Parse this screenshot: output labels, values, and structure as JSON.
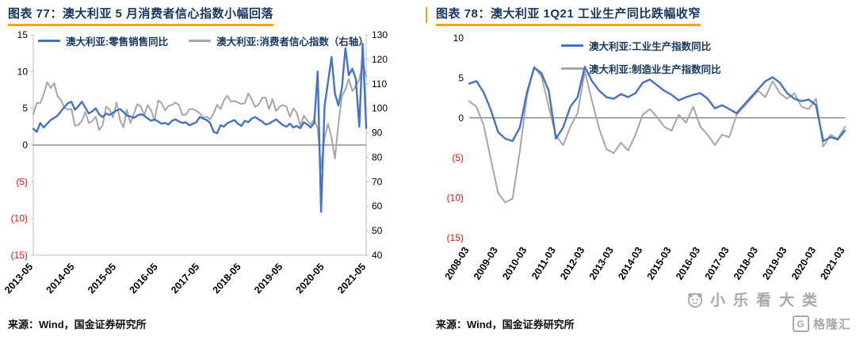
{
  "page": {
    "background": "#ffffff",
    "accent_underline": "#f7a600",
    "title_color": "#17375e",
    "negative_tick_color": "#ff0000"
  },
  "watermark": {
    "text": "小乐看大类",
    "logo_text": "格隆汇",
    "logo_letter": "G",
    "color": "#a8a8a8"
  },
  "chart_data": [
    {
      "type": "line",
      "title": "图表 77：澳大利亚 5 月消费者信心指数小幅回落",
      "source": "来源：Wind，国金证券研究所",
      "x_unit": "month",
      "x_range": [
        "2013-05",
        "2021-05"
      ],
      "x_tick_labels": [
        "2013-05",
        "2014-05",
        "2015-05",
        "2016-05",
        "2017-05",
        "2018-05",
        "2019-05",
        "2020-05",
        "2021-05"
      ],
      "x_tick_indices": [
        0,
        12,
        24,
        36,
        48,
        60,
        72,
        84,
        96
      ],
      "left_axis": {
        "min": -15,
        "max": 15,
        "ticks": [
          15,
          10,
          5,
          0,
          -5,
          -10,
          -15
        ]
      },
      "right_axis": {
        "min": 40,
        "max": 130,
        "ticks": [
          130,
          120,
          110,
          100,
          90,
          80,
          70,
          60,
          50,
          40
        ]
      },
      "negative_label_color": "#ff0000",
      "grid": false,
      "legend_position": "top",
      "series": [
        {
          "name": "澳大利亚:零售销售同比",
          "color": "#4472c4",
          "axis": "left",
          "values": [
            2.2,
            1.8,
            3.0,
            2.4,
            2.9,
            3.4,
            3.7,
            4.0,
            4.6,
            5.2,
            5.7,
            5.9,
            4.8,
            5.3,
            5.9,
            5.1,
            4.3,
            4.6,
            5.0,
            4.2,
            3.8,
            4.3,
            4.1,
            4.4,
            4.7,
            4.9,
            4.5,
            4.0,
            3.9,
            3.7,
            4.0,
            4.2,
            4.0,
            3.6,
            3.3,
            3.5,
            3.2,
            2.9,
            3.0,
            2.8,
            3.3,
            3.5,
            3.2,
            3.0,
            3.1,
            2.7,
            2.9,
            3.1,
            3.8,
            3.6,
            3.4,
            3.0,
            1.8,
            1.6,
            2.7,
            2.5,
            3.0,
            3.2,
            3.4,
            2.9,
            2.6,
            3.3,
            3.1,
            3.6,
            3.8,
            3.5,
            3.2,
            2.8,
            2.9,
            3.2,
            3.5,
            3.1,
            2.7,
            2.5,
            2.9,
            2.4,
            2.6,
            2.3,
            3.1,
            2.8,
            2.4,
            3.0,
            10.0,
            -9.1,
            5.3,
            8.6,
            12.0,
            7.0,
            5.4,
            7.8,
            13.2,
            9.5,
            10.4,
            9.0,
            2.5,
            13.8,
            2.3
          ]
        },
        {
          "name": "澳大利亚:消费者信心指数（右轴）",
          "color": "#a6a6a6",
          "axis": "right",
          "values": [
            97.6,
            102.2,
            102.1,
            105.7,
            110.6,
            108.3,
            110.3,
            105.0,
            103.3,
            100.2,
            99.5,
            99.7,
            92.9,
            93.2,
            94.9,
            98.5,
            94.0,
            94.8,
            96.6,
            91.1,
            93.2,
            100.7,
            99.5,
            96.2,
            102.4,
            95.3,
            92.2,
            99.5,
            93.9,
            97.8,
            101.7,
            100.8,
            97.3,
            101.3,
            99.1,
            95.1,
            103.2,
            102.2,
            99.1,
            101.0,
            101.4,
            102.4,
            101.3,
            97.3,
            97.4,
            99.6,
            99.7,
            99.0,
            98.0,
            96.2,
            96.6,
            95.5,
            97.9,
            101.4,
            99.7,
            103.3,
            105.1,
            102.7,
            103.0,
            102.4,
            101.8,
            102.1,
            106.1,
            103.6,
            100.5,
            101.5,
            104.3,
            104.4,
            99.6,
            103.8,
            98.8,
            100.7,
            101.3,
            100.7,
            96.5,
            100.0,
            98.2,
            92.8,
            97.0,
            95.1,
            93.4,
            95.5,
            91.9,
            75.6,
            88.1,
            93.7,
            87.9,
            79.5,
            93.8,
            105.0,
            107.7,
            112.0,
            107.0,
            109.1,
            111.8,
            118.8,
            113.1
          ]
        }
      ]
    },
    {
      "type": "line",
      "title": "图表 78：澳大利亚 1Q21 工业生产同比跌幅收窄",
      "source": "来源：Wind，国金证券研究所",
      "x_unit": "quarter",
      "x_range": [
        "2008-03",
        "2021-03"
      ],
      "x_tick_labels": [
        "2008-03",
        "2009-03",
        "2010-03",
        "2011-03",
        "2012-03",
        "2013-03",
        "2014-03",
        "2015-03",
        "2016-03",
        "2017-03",
        "2018-03",
        "2019-03",
        "2020-03",
        "2021-03"
      ],
      "x_tick_indices": [
        0,
        4,
        8,
        12,
        16,
        20,
        24,
        28,
        32,
        36,
        40,
        44,
        48,
        52
      ],
      "left_axis": {
        "min": -15,
        "max": 10,
        "ticks": [
          10,
          5,
          0,
          -5,
          -10,
          -15
        ]
      },
      "negative_label_color": "#ff0000",
      "grid": false,
      "legend_position": "top",
      "series": [
        {
          "name": "澳大利亚:工业生产指数同比",
          "color": "#4472c4",
          "axis": "left",
          "values": [
            4.3,
            4.6,
            3.2,
            1.0,
            -1.8,
            -2.6,
            -2.9,
            -1.2,
            3.2,
            6.3,
            5.6,
            3.4,
            -2.6,
            -1.2,
            1.4,
            2.6,
            6.4,
            4.6,
            3.4,
            2.6,
            2.4,
            3.0,
            2.6,
            3.1,
            4.4,
            4.8,
            4.1,
            3.4,
            2.9,
            2.2,
            2.6,
            2.9,
            3.1,
            2.4,
            1.2,
            1.6,
            1.1,
            0.6,
            1.6,
            2.6,
            3.6,
            4.6,
            5.1,
            4.4,
            3.1,
            2.4,
            2.1,
            2.3,
            1.6,
            -2.9,
            -2.4,
            -2.7,
            -1.6
          ]
        },
        {
          "name": "澳大利亚:制造业生产指数同比",
          "color": "#a6a6a6",
          "axis": "left",
          "values": [
            2.1,
            1.4,
            -0.9,
            -5.2,
            -9.4,
            -10.6,
            -10.1,
            -4.2,
            2.8,
            6.4,
            5.2,
            1.4,
            -2.2,
            -3.4,
            -1.1,
            0.6,
            5.8,
            2.1,
            -1.4,
            -3.9,
            -4.4,
            -3.1,
            -4.1,
            -2.1,
            0.4,
            1.1,
            0.1,
            -1.1,
            -1.6,
            0.4,
            -0.6,
            1.4,
            -1.1,
            -2.1,
            -3.4,
            -2.1,
            -2.4,
            0.4,
            1.4,
            2.4,
            3.4,
            2.6,
            4.6,
            3.1,
            2.4,
            3.1,
            1.4,
            1.1,
            2.4,
            -3.6,
            -2.1,
            -2.6,
            -1.1
          ]
        }
      ]
    }
  ]
}
